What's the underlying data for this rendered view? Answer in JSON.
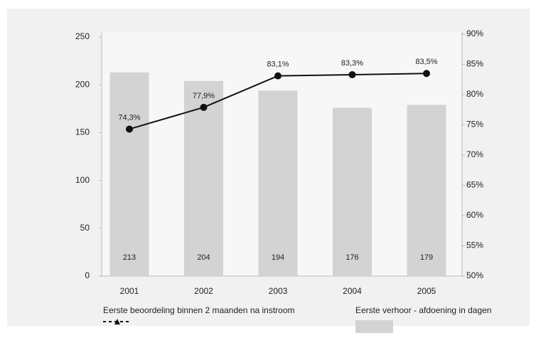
{
  "chart_data": {
    "type": "bar",
    "categories": [
      "2001",
      "2002",
      "2003",
      "2004",
      "2005"
    ],
    "series": [
      {
        "name": "Eerste verhoor - afdoening in dagen",
        "type": "bar",
        "color": "#d3d3d3",
        "values": [
          213,
          204,
          194,
          176,
          179
        ]
      },
      {
        "name": "Eerste beoordeling binnen 2 maanden na instroom",
        "type": "line",
        "axis": "y2",
        "color": "#111111",
        "values": [
          74.3,
          77.9,
          83.1,
          83.3,
          83.5
        ],
        "value_labels": [
          "74,3%",
          "77,9%",
          "83,1%",
          "83,3%",
          "83,5%"
        ]
      }
    ],
    "ylim": [
      0,
      250
    ],
    "yticks": [
      0,
      50,
      100,
      150,
      200,
      250
    ],
    "y2lim": [
      50,
      90
    ],
    "y2ticks": [
      {
        "value": 50,
        "label": "50%"
      },
      {
        "value": 55,
        "label": "55%"
      },
      {
        "value": 60,
        "label": "60%"
      },
      {
        "value": 65,
        "label": "65%"
      },
      {
        "value": 70,
        "label": "70%"
      },
      {
        "value": 75,
        "label": "75%"
      },
      {
        "value": 80,
        "label": "80%"
      },
      {
        "value": 85,
        "label": "85%"
      },
      {
        "value": 90,
        "label": "90%"
      }
    ]
  }
}
